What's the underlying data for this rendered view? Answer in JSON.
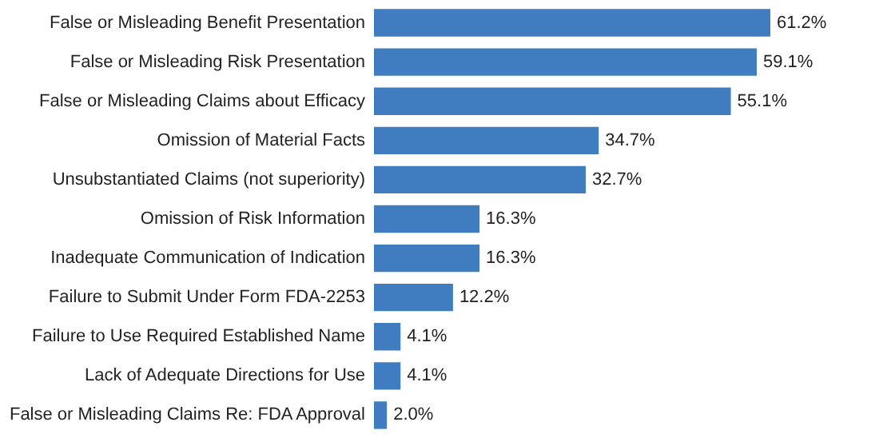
{
  "chart_data": {
    "type": "bar",
    "orientation": "horizontal",
    "categories": [
      "False or Misleading Benefit Presentation",
      "False or Misleading Risk Presentation",
      "False or Misleading Claims about Efficacy",
      "Omission of Material Facts",
      "Unsubstantiated Claims (not superiority)",
      "Omission of Risk Information",
      "Inadequate Communication of Indication",
      "Failure to Submit Under Form FDA-2253",
      "Failure to Use Required Established Name",
      "Lack of Adequate Directions for Use",
      "False or Misleading Claims Re: FDA Approval"
    ],
    "values": [
      61.2,
      59.1,
      55.1,
      34.7,
      32.7,
      16.3,
      16.3,
      12.2,
      4.1,
      4.1,
      2.0
    ],
    "value_labels": [
      "61.2%",
      "59.1%",
      "55.1%",
      "34.7%",
      "32.7%",
      "16.3%",
      "16.3%",
      "12.2%",
      "4.1%",
      "4.1%",
      "2.0%"
    ],
    "color": "#3f7cc0"
  }
}
